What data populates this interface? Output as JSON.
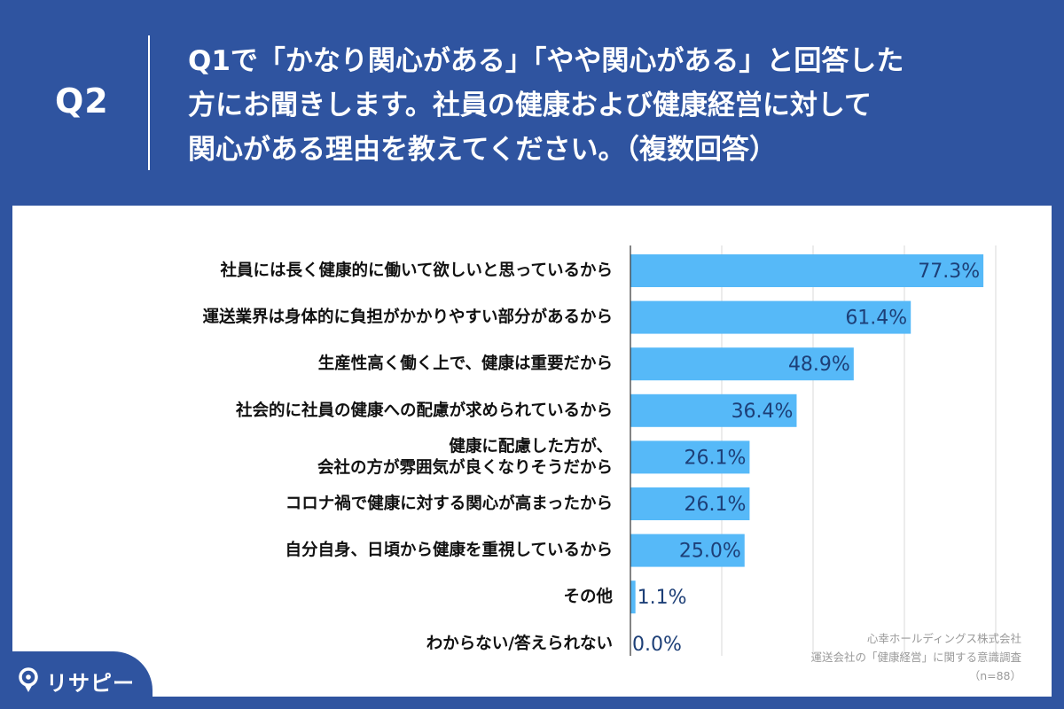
{
  "header": {
    "q_label": "Q2",
    "question_lines": [
      "Q1で「かなり関心がある」「やや関心がある」と回答した",
      "方にお聞きします。社員の健康および健康経営に対して",
      "関心がある理由を教えてください。（複数回答）"
    ]
  },
  "source": {
    "line1": "心幸ホールディングス株式会社",
    "line2": "運送会社の「健康経営」に関する意識調査",
    "line3": "（n=88）"
  },
  "logo": {
    "text": "リサピー",
    "icon": "location-pin-icon"
  },
  "colors": {
    "background": "#2f54a0",
    "bar": "#56b9f8",
    "value_text": "#1d3f77",
    "grid": "#d9d9d9"
  },
  "chart_data": {
    "type": "bar",
    "orientation": "horizontal",
    "value_format": "percent",
    "categories": [
      "社員には長く健康的に働いて欲しいと思っているから",
      "運送業界は身体的に負担がかかりやすい部分があるから",
      "生産性高く働く上で、健康は重要だから",
      "社会的に社員の健康への配慮が求められているから",
      "健康に配慮した方が、\n会社の方が雰囲気が良くなりそうだから",
      "コロナ禍で健康に対する関心が高まったから",
      "自分自身、日頃から健康を重視しているから",
      "その他",
      "わからない/答えられない"
    ],
    "values": [
      77.3,
      61.4,
      48.9,
      36.4,
      26.1,
      26.1,
      25.0,
      1.1,
      0.0
    ],
    "value_labels": [
      "77.3%",
      "61.4%",
      "48.9%",
      "36.4%",
      "26.1%",
      "26.1%",
      "25.0%",
      "1.1%",
      "0.0%"
    ],
    "xlim": [
      0,
      80
    ],
    "grid": true,
    "legend": "none"
  }
}
